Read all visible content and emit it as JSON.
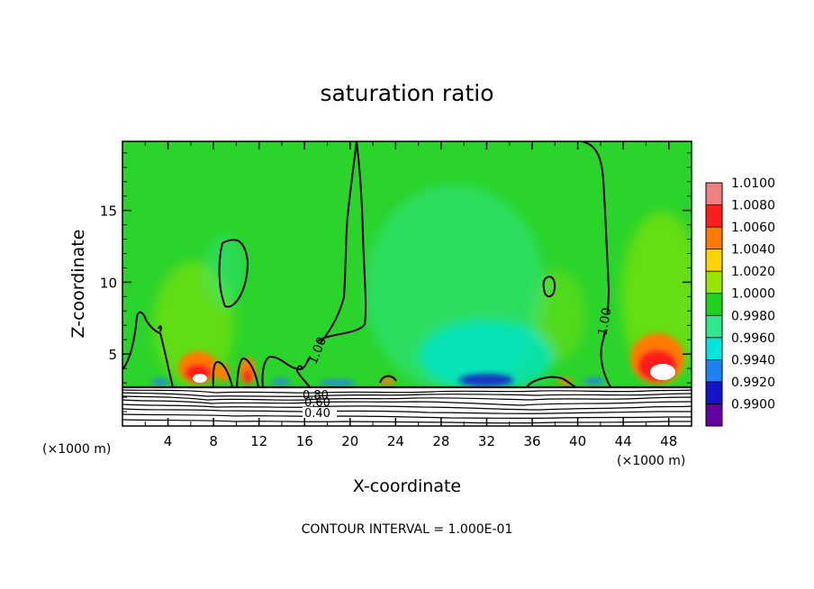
{
  "chart_data": {
    "type": "heatmap",
    "title": "saturation ratio",
    "xlabel": "X-coordinate",
    "ylabel": "Z-coordinate",
    "x_unit_left": "(×1000 m)",
    "x_unit_right": "(×1000 m)",
    "xlim": [
      0,
      50
    ],
    "ylim": [
      0,
      19.8
    ],
    "x_ticks": [
      4,
      8,
      12,
      16,
      20,
      24,
      28,
      32,
      36,
      40,
      44,
      48
    ],
    "x_tick_labels": [
      "4",
      "8",
      "12",
      "16",
      "20",
      "24",
      "28",
      "32",
      "36",
      "40",
      "44",
      "48"
    ],
    "y_ticks": [
      5,
      10,
      15
    ],
    "y_tick_labels": [
      "5",
      "10",
      "15"
    ],
    "colorbar": {
      "levels": [
        "1.0100",
        "1.0080",
        "1.0060",
        "1.0040",
        "1.0020",
        "1.0000",
        "0.9980",
        "0.9960",
        "0.9940",
        "0.9920",
        "0.9900"
      ],
      "colors": [
        "#f08080",
        "#ff1e1e",
        "#ff7a00",
        "#ffd200",
        "#96e600",
        "#1ed21e",
        "#2ee88a",
        "#00e6dc",
        "#1e82f0",
        "#1414c8",
        "#6400a0"
      ]
    },
    "field_colors": {
      "background": "#2bd42b",
      "high": "#96e600",
      "low": "#2ee8a0",
      "very_low": "#00e6dc",
      "minimum": "#1414c8",
      "max_orange": "#ff7a00",
      "max_red": "#ff1e1e",
      "saturated": "#ffffff"
    },
    "contour_labels": [
      {
        "text": "1.00",
        "x": 17.0,
        "z": 5.8
      },
      {
        "text": "1.00",
        "x": 42.2,
        "z": 7.1
      },
      {
        "text": "0.80",
        "x": 17.5,
        "z": 2.2
      },
      {
        "text": "0.60",
        "x": 17.9,
        "z": 1.7
      },
      {
        "text": "0.40",
        "x": 17.9,
        "z": 0.8
      }
    ],
    "footer": "CONTOUR INTERVAL = 1.000E-01"
  }
}
